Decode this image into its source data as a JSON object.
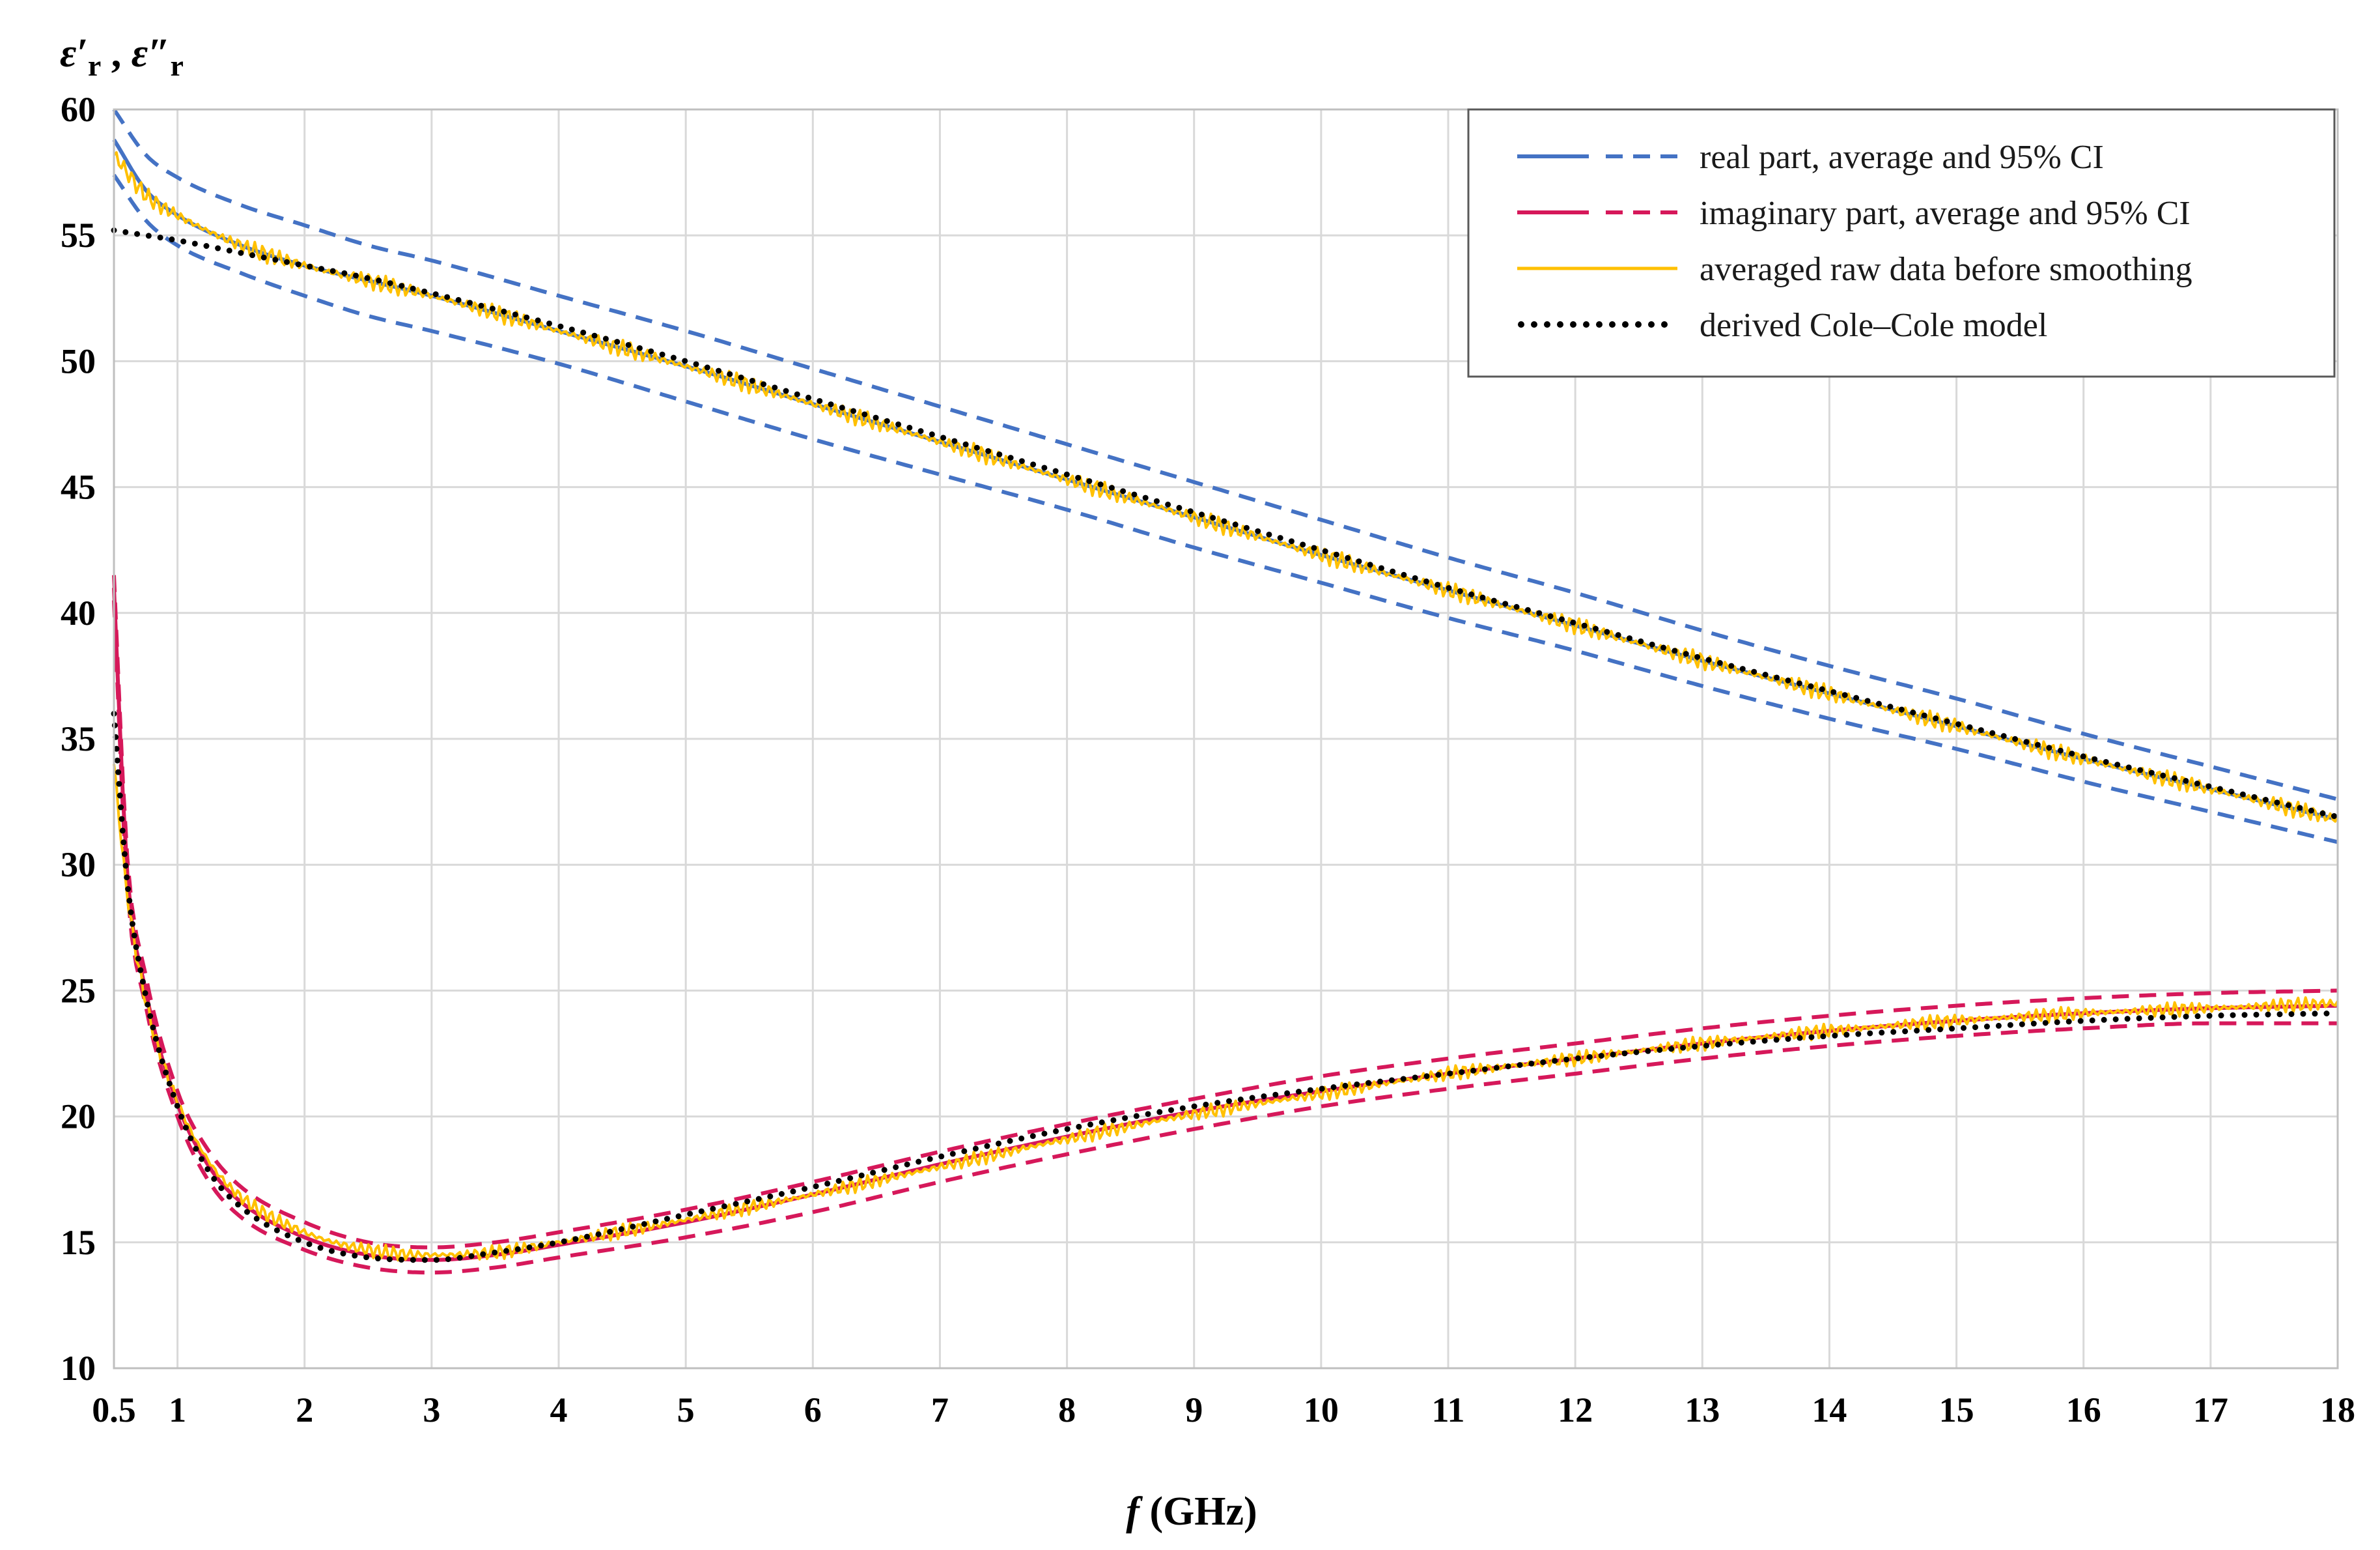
{
  "chart_data": {
    "type": "line",
    "ylabel_parts": [
      "ε",
      "′",
      "r",
      " , ",
      "ε",
      "″",
      "r"
    ],
    "xlabel_var": "f",
    "xlabel_unit": " (GHz)",
    "xlim": [
      0.5,
      18
    ],
    "ylim": [
      10,
      60
    ],
    "xticks": [
      0.5,
      1,
      2,
      3,
      4,
      5,
      6,
      7,
      8,
      9,
      10,
      11,
      12,
      13,
      14,
      15,
      16,
      17,
      18
    ],
    "xtick_labels": [
      "0.5",
      "1",
      "2",
      "3",
      "4",
      "5",
      "6",
      "7",
      "8",
      "9",
      "10",
      "11",
      "12",
      "13",
      "14",
      "15",
      "16",
      "17",
      "18"
    ],
    "yticks": [
      10,
      15,
      20,
      25,
      30,
      35,
      40,
      45,
      50,
      55,
      60
    ],
    "ytick_labels": [
      "10",
      "15",
      "20",
      "25",
      "30",
      "35",
      "40",
      "45",
      "50",
      "55",
      "60"
    ],
    "grid": true,
    "legend_position": "top-right",
    "colors": {
      "real": "#4472c4",
      "imaginary": "#d6185a",
      "raw": "#ffc000",
      "model": "#000000"
    },
    "legend": [
      {
        "label": "real part, average and 95% CI",
        "style": "solid-dashed",
        "color": "#4472c4"
      },
      {
        "label": "imaginary part, average and 95% CI",
        "style": "solid-dashed",
        "color": "#d6185a"
      },
      {
        "label": "averaged raw data before smoothing",
        "style": "solid",
        "color": "#ffc000"
      },
      {
        "label": "derived Cole–Cole model",
        "style": "dotted",
        "color": "#000000"
      }
    ],
    "series": [
      {
        "name": "real part average",
        "color": "#4472c4",
        "style": "solid",
        "x": [
          0.5,
          0.75,
          1,
          1.5,
          2,
          2.5,
          3,
          4,
          5,
          6,
          7,
          8,
          9,
          10,
          11,
          12,
          13,
          14,
          15,
          16,
          17,
          18
        ],
        "y": [
          58.8,
          56.8,
          55.8,
          54.6,
          53.8,
          53.2,
          52.6,
          51.2,
          49.8,
          48.3,
          46.8,
          45.3,
          43.8,
          42.3,
          40.9,
          39.5,
          38.1,
          36.8,
          35.5,
          34.2,
          33.0,
          31.8
        ]
      },
      {
        "name": "real part 95% CI upper",
        "color": "#4472c4",
        "style": "dashed",
        "x": [
          0.5,
          0.75,
          1,
          1.5,
          2,
          2.5,
          3,
          4,
          5,
          6,
          7,
          8,
          9,
          10,
          11,
          12,
          13,
          14,
          15,
          16,
          17,
          18
        ],
        "y": [
          60.0,
          58.2,
          57.3,
          56.2,
          55.4,
          54.6,
          54.0,
          52.6,
          51.2,
          49.7,
          48.2,
          46.7,
          45.2,
          43.7,
          42.2,
          40.8,
          39.3,
          37.9,
          36.6,
          35.2,
          33.9,
          32.6
        ]
      },
      {
        "name": "real part 95% CI lower",
        "color": "#4472c4",
        "style": "dashed",
        "x": [
          0.5,
          0.75,
          1,
          1.5,
          2,
          2.5,
          3,
          4,
          5,
          6,
          7,
          8,
          9,
          10,
          11,
          12,
          13,
          14,
          15,
          16,
          17,
          18
        ],
        "y": [
          57.4,
          55.6,
          54.6,
          53.5,
          52.6,
          51.8,
          51.2,
          49.9,
          48.4,
          46.9,
          45.5,
          44.1,
          42.6,
          41.2,
          39.8,
          38.5,
          37.1,
          35.8,
          34.6,
          33.3,
          32.1,
          30.9
        ]
      },
      {
        "name": "real part raw data",
        "color": "#ffc000",
        "style": "solid",
        "noise": 0.35,
        "x": [
          0.5,
          0.75,
          1,
          1.5,
          2,
          2.5,
          3,
          4,
          5,
          6,
          7,
          8,
          9,
          10,
          11,
          12,
          13,
          14,
          15,
          16,
          17,
          18
        ],
        "y": [
          58.2,
          56.6,
          55.8,
          54.6,
          53.8,
          53.2,
          52.6,
          51.2,
          49.8,
          48.3,
          46.8,
          45.3,
          43.8,
          42.3,
          40.9,
          39.5,
          38.1,
          36.8,
          35.5,
          34.2,
          33.0,
          31.8
        ]
      },
      {
        "name": "real part Cole-Cole model",
        "color": "#000000",
        "style": "dotted",
        "x": [
          0.5,
          0.75,
          1,
          1.5,
          2,
          2.5,
          3,
          4,
          5,
          6,
          7,
          8,
          9,
          10,
          11,
          12,
          13,
          14,
          15,
          16,
          17,
          18
        ],
        "y": [
          55.2,
          55.0,
          54.8,
          54.3,
          53.8,
          53.3,
          52.7,
          51.4,
          50.0,
          48.5,
          47.0,
          45.5,
          44.0,
          42.5,
          41.0,
          39.6,
          38.2,
          36.9,
          35.6,
          34.3,
          33.1,
          31.9
        ]
      },
      {
        "name": "imaginary part average",
        "color": "#d6185a",
        "style": "solid",
        "x": [
          0.5,
          0.6,
          0.75,
          1,
          1.25,
          1.5,
          2,
          2.5,
          3,
          3.5,
          4,
          5,
          6,
          7,
          8,
          9,
          10,
          11,
          12,
          13,
          14,
          15,
          16,
          17,
          18
        ],
        "y": [
          41.0,
          30.0,
          25.0,
          20.5,
          18.0,
          16.6,
          15.2,
          14.5,
          14.3,
          14.5,
          14.9,
          15.8,
          16.9,
          18.1,
          19.2,
          20.2,
          21.0,
          21.7,
          22.3,
          22.9,
          23.4,
          23.8,
          24.1,
          24.3,
          24.4
        ]
      },
      {
        "name": "imaginary part 95% CI upper",
        "color": "#d6185a",
        "style": "dashed",
        "x": [
          0.5,
          0.6,
          0.75,
          1,
          1.25,
          1.5,
          2,
          2.5,
          3,
          3.5,
          4,
          5,
          6,
          7,
          8,
          9,
          10,
          11,
          12,
          13,
          14,
          15,
          16,
          17,
          18
        ],
        "y": [
          41.5,
          30.6,
          25.6,
          21.0,
          18.6,
          17.2,
          15.8,
          15.0,
          14.8,
          15.0,
          15.4,
          16.3,
          17.4,
          18.6,
          19.7,
          20.7,
          21.6,
          22.3,
          22.9,
          23.5,
          24.0,
          24.4,
          24.7,
          24.9,
          25.0
        ]
      },
      {
        "name": "imaginary part 95% CI lower",
        "color": "#d6185a",
        "style": "dashed",
        "x": [
          0.5,
          0.6,
          0.75,
          1,
          1.25,
          1.5,
          2,
          2.5,
          3,
          3.5,
          4,
          5,
          6,
          7,
          8,
          9,
          10,
          11,
          12,
          13,
          14,
          15,
          16,
          17,
          18
        ],
        "y": [
          40.5,
          29.4,
          24.4,
          20.0,
          17.4,
          16.0,
          14.7,
          14.0,
          13.8,
          14.0,
          14.4,
          15.2,
          16.2,
          17.4,
          18.5,
          19.5,
          20.4,
          21.1,
          21.7,
          22.3,
          22.8,
          23.2,
          23.5,
          23.7,
          23.7
        ]
      },
      {
        "name": "imaginary part raw data",
        "color": "#ffc000",
        "style": "solid",
        "noise": 0.3,
        "x": [
          0.5,
          0.6,
          0.75,
          1,
          1.25,
          1.5,
          2,
          2.5,
          3,
          3.5,
          4,
          5,
          6,
          7,
          8,
          9,
          10,
          11,
          12,
          13,
          14,
          15,
          16,
          17,
          18
        ],
        "y": [
          34.0,
          29.0,
          24.6,
          20.6,
          18.2,
          16.8,
          15.4,
          14.7,
          14.5,
          14.6,
          15.0,
          15.9,
          16.9,
          18.0,
          19.1,
          20.1,
          20.9,
          21.7,
          22.3,
          22.9,
          23.4,
          23.8,
          24.1,
          24.3,
          24.5
        ]
      },
      {
        "name": "imaginary part Cole-Cole model",
        "color": "#000000",
        "style": "dotted",
        "x": [
          0.5,
          0.6,
          0.75,
          1,
          1.25,
          1.5,
          2,
          2.5,
          3,
          3.5,
          4,
          5,
          6,
          7,
          8,
          9,
          10,
          11,
          12,
          13,
          14,
          15,
          16,
          17,
          18
        ],
        "y": [
          36.0,
          29.5,
          24.8,
          20.4,
          17.8,
          16.4,
          15.0,
          14.4,
          14.3,
          14.6,
          15.0,
          16.1,
          17.2,
          18.4,
          19.5,
          20.4,
          21.1,
          21.7,
          22.3,
          22.8,
          23.2,
          23.5,
          23.8,
          24.0,
          24.1
        ]
      }
    ]
  }
}
